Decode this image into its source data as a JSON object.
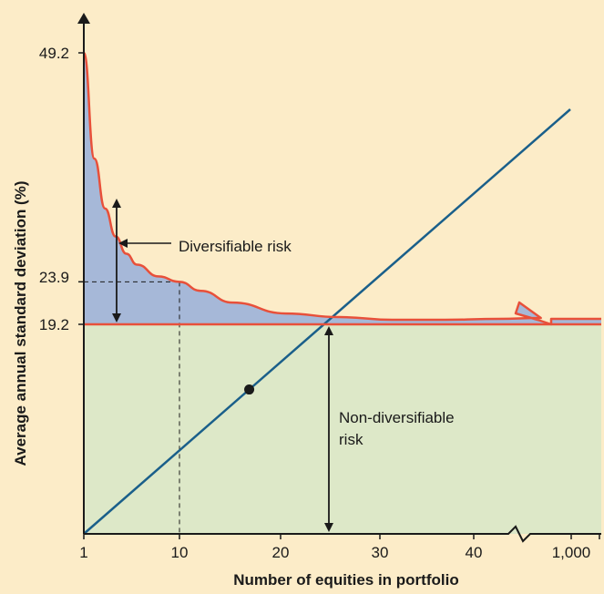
{
  "chart_data": {
    "type": "area",
    "title": "",
    "xlabel": "Number of equities in portfolio",
    "ylabel": "Average annual standard deviation (%)",
    "x_ticks": [
      "1",
      "10",
      "20",
      "30",
      "40",
      "1,000"
    ],
    "y_ticks": [
      "49.2",
      "23.9",
      "19.2"
    ],
    "ylim": [
      0,
      49.2
    ],
    "grid": false,
    "legend": "none",
    "series": [
      {
        "name": "",
        "x": [
          1,
          2,
          3,
          4,
          5,
          6,
          8,
          10,
          12,
          15,
          20,
          25,
          30,
          35,
          40,
          44
        ],
        "values": [
          49.2,
          37.5,
          32.0,
          28.9,
          27.0,
          25.8,
          24.5,
          23.9,
          22.9,
          21.6,
          20.4,
          20.0,
          19.7,
          19.7,
          19.8,
          19.9
        ]
      }
    ],
    "non_diversifiable_level": 19.2,
    "reference_lines": [
      {
        "x": 10,
        "y": 23.9,
        "style": "dashed"
      }
    ],
    "annotations": {
      "diversifiable": "Diversifiable risk",
      "non_diversifiable_line1": "Non-diversifiable",
      "non_diversifiable_line2": "risk"
    },
    "colors": {
      "background": "#fcecc8",
      "diversifiable_fill": "#a6b8d8",
      "non_diversifiable_fill": "#dde8c8",
      "risk_curve": "#e8503a",
      "diagonal_line": "#1a5f8a",
      "axis": "#1a1a1a"
    }
  }
}
